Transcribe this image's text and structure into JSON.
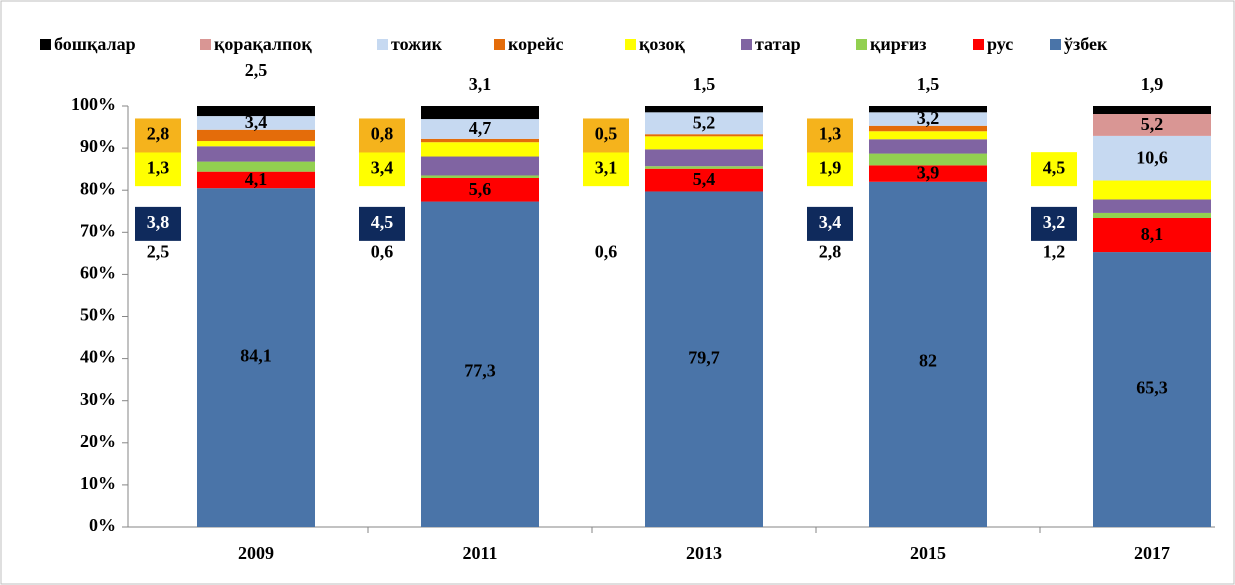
{
  "chart_data": {
    "type": "stacked_percent_bar",
    "categories": [
      "2009",
      "2011",
      "2013",
      "2015",
      "2017"
    ],
    "ylim": [
      0,
      100
    ],
    "yticks": [
      {
        "value": 0,
        "label": "0%"
      },
      {
        "value": 10,
        "label": "10%"
      },
      {
        "value": 20,
        "label": "20%"
      },
      {
        "value": 30,
        "label": "30%"
      },
      {
        "value": 40,
        "label": "40%"
      },
      {
        "value": 50,
        "label": "50%"
      },
      {
        "value": 60,
        "label": "60%"
      },
      {
        "value": 70,
        "label": "70%"
      },
      {
        "value": 80,
        "label": "80%"
      },
      {
        "value": 90,
        "label": "90%"
      },
      {
        "value": 100,
        "label": "100%"
      }
    ],
    "legend": "top",
    "series": [
      {
        "name": "бошқалар",
        "color": "#000000",
        "values": [
          2.5,
          3.1,
          1.5,
          1.5,
          1.9
        ],
        "value_labels": [
          "2,5",
          "3,1",
          "1,5",
          "1,5",
          "1,9"
        ]
      },
      {
        "name": "қорақалпоқ",
        "color": "#d99694",
        "values": [
          null,
          null,
          null,
          null,
          5.2
        ],
        "value_labels": [
          null,
          null,
          null,
          null,
          "5,2"
        ]
      },
      {
        "name": "тожик",
        "color": "#c6d9f1",
        "values": [
          3.4,
          4.7,
          5.2,
          3.2,
          10.6
        ],
        "value_labels": [
          "3,4",
          "4,7",
          "5,2",
          "3,2",
          "10,6"
        ]
      },
      {
        "name": "корейс",
        "color": "#e46c0a",
        "values": [
          2.8,
          0.8,
          0.5,
          1.3,
          null
        ],
        "value_labels": [
          "2,8",
          "0,8",
          "0,5",
          "1,3",
          null
        ]
      },
      {
        "name": "қозоқ",
        "color": "#ffff00",
        "values": [
          1.3,
          3.4,
          3.1,
          1.9,
          4.5
        ],
        "value_labels": [
          "1,3",
          "3,4",
          "3,1",
          "1,9",
          "4,5"
        ]
      },
      {
        "name": "татар",
        "color": "#8064a2",
        "values": [
          3.8,
          4.5,
          4,
          3.4,
          3.2
        ],
        "value_labels": [
          "3,8",
          "4,5",
          null,
          "3,4",
          "3,2"
        ]
      },
      {
        "name": "қирғиз",
        "color": "#92d050",
        "values": [
          2.5,
          0.6,
          0.6,
          2.8,
          1.2
        ],
        "value_labels": [
          "2,5",
          "0,6",
          "0,6",
          "2,8",
          "1,2"
        ]
      },
      {
        "name": "рус",
        "color": "#ff0000",
        "values": [
          4.1,
          5.6,
          5.4,
          3.9,
          8.1
        ],
        "value_labels": [
          "4,1",
          "5,6",
          "5,4",
          "3,9",
          "8,1"
        ]
      },
      {
        "name": "ўзбек",
        "color": "#4a74a8",
        "values": [
          84.1,
          77.3,
          79.7,
          82,
          65.3
        ],
        "value_labels": [
          "84,1",
          "77,3",
          "79,7",
          "82",
          "65,3"
        ]
      }
    ]
  }
}
